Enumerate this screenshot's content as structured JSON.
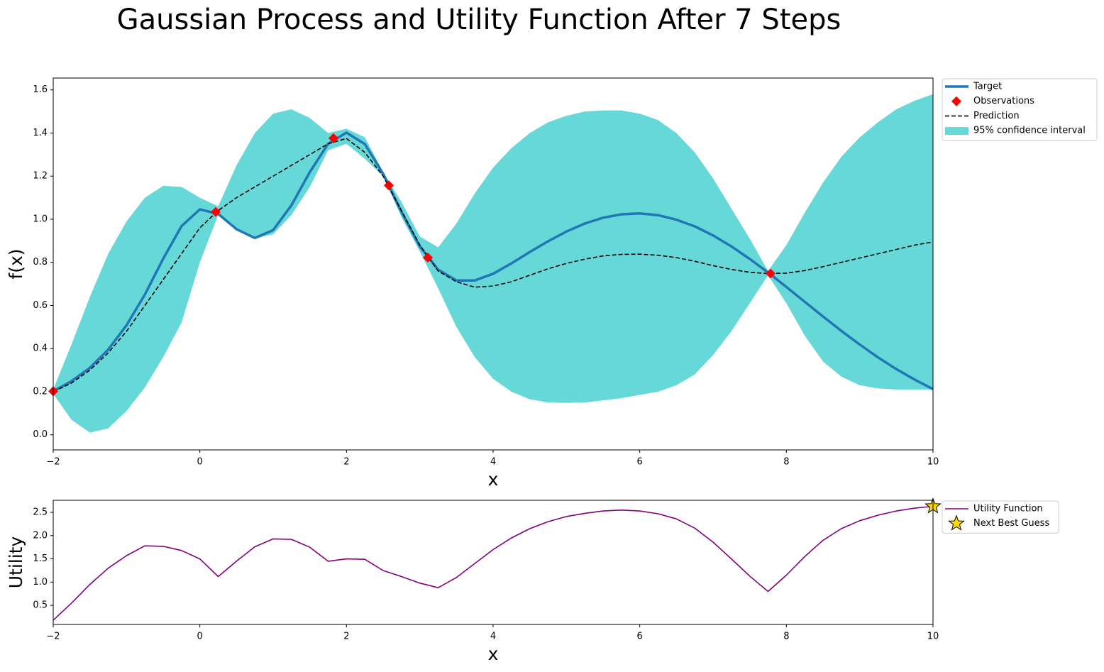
{
  "title": "Gaussian Process and Utility Function After 7 Steps",
  "chart_data": [
    {
      "type": "line",
      "xlabel": "x",
      "ylabel": "f(x)",
      "x": [
        -2,
        -1.75,
        -1.5,
        -1.25,
        -1,
        -0.75,
        -0.5,
        -0.25,
        0,
        0.25,
        0.5,
        0.75,
        1,
        1.25,
        1.5,
        1.75,
        2,
        2.25,
        2.5,
        2.75,
        3,
        3.25,
        3.5,
        3.75,
        4,
        4.25,
        4.5,
        4.75,
        5,
        5.25,
        5.5,
        5.75,
        6,
        6.25,
        6.5,
        6.75,
        7,
        7.25,
        7.5,
        7.75,
        8,
        8.25,
        8.5,
        8.75,
        9,
        9.25,
        9.5,
        9.75,
        10
      ],
      "series": [
        {
          "name": "Target",
          "color": "#1f77b4",
          "width": 3.5,
          "values": [
            0.202,
            0.249,
            0.311,
            0.395,
            0.508,
            0.651,
            0.817,
            0.968,
            1.046,
            1.025,
            0.954,
            0.913,
            0.95,
            1.065,
            1.219,
            1.35,
            1.402,
            1.349,
            1.211,
            1.034,
            0.874,
            0.766,
            0.716,
            0.716,
            0.747,
            0.795,
            0.848,
            0.898,
            0.943,
            0.98,
            1.007,
            1.023,
            1.027,
            1.019,
            0.998,
            0.967,
            0.925,
            0.874,
            0.816,
            0.753,
            0.686,
            0.617,
            0.549,
            0.482,
            0.419,
            0.359,
            0.305,
            0.256,
            0.212
          ]
        },
        {
          "name": "Prediction",
          "color": "#000000",
          "width": 1.6,
          "dash": "dashed",
          "values": [
            0.2,
            0.24,
            0.3,
            0.38,
            0.48,
            0.6,
            0.72,
            0.84,
            0.96,
            1.04,
            1.1,
            1.15,
            1.2,
            1.25,
            1.3,
            1.35,
            1.375,
            1.31,
            1.2,
            1.04,
            0.88,
            0.76,
            0.71,
            0.685,
            0.69,
            0.71,
            0.74,
            0.77,
            0.795,
            0.815,
            0.83,
            0.837,
            0.838,
            0.833,
            0.822,
            0.805,
            0.785,
            0.767,
            0.754,
            0.748,
            0.75,
            0.762,
            0.78,
            0.8,
            0.82,
            0.84,
            0.86,
            0.88,
            0.895
          ]
        }
      ],
      "band": {
        "name": "95% confidence interval",
        "color": "#66d8d8",
        "lower": [
          0.19,
          0.07,
          0.01,
          0.03,
          0.11,
          0.22,
          0.36,
          0.52,
          0.8,
          1.02,
          0.96,
          0.91,
          0.93,
          1.02,
          1.15,
          1.32,
          1.35,
          1.28,
          1.2,
          1.01,
          0.85,
          0.68,
          0.5,
          0.36,
          0.26,
          0.2,
          0.165,
          0.15,
          0.148,
          0.15,
          0.16,
          0.17,
          0.185,
          0.2,
          0.23,
          0.28,
          0.37,
          0.48,
          0.61,
          0.74,
          0.61,
          0.46,
          0.34,
          0.27,
          0.23,
          0.215,
          0.21,
          0.21,
          0.21
        ],
        "upper": [
          0.21,
          0.42,
          0.64,
          0.84,
          0.99,
          1.1,
          1.155,
          1.15,
          1.1,
          1.06,
          1.25,
          1.4,
          1.49,
          1.51,
          1.47,
          1.4,
          1.42,
          1.38,
          1.22,
          1.08,
          0.92,
          0.87,
          0.98,
          1.12,
          1.24,
          1.33,
          1.4,
          1.45,
          1.48,
          1.5,
          1.505,
          1.505,
          1.49,
          1.46,
          1.4,
          1.31,
          1.19,
          1.05,
          0.91,
          0.76,
          0.88,
          1.03,
          1.17,
          1.29,
          1.38,
          1.45,
          1.51,
          1.55,
          1.58
        ]
      },
      "points": {
        "name": "Observations",
        "color": "#ff0000",
        "shape": "diamond",
        "x": [
          -2,
          0.216,
          1.823,
          2.578,
          3.11,
          7.784
        ],
        "values": [
          0.202,
          1.034,
          1.376,
          1.157,
          0.822,
          0.748
        ]
      },
      "xlim": [
        -2,
        10
      ],
      "xticks": [
        {
          "value": -2,
          "label": "−2"
        },
        0,
        2,
        4,
        6,
        8,
        10
      ],
      "ylim": [
        -0.07,
        1.655
      ],
      "yticks": [
        {
          "value": 0,
          "label": "0.0"
        },
        0.2,
        0.4,
        0.6,
        0.8,
        {
          "value": 1,
          "label": "1.0"
        },
        1.2,
        1.4,
        1.6
      ],
      "legend": "outside upper right"
    },
    {
      "type": "line",
      "xlabel": "x",
      "ylabel": "Utility",
      "x": [
        -2,
        -1.75,
        -1.5,
        -1.25,
        -1,
        -0.75,
        -0.5,
        -0.25,
        0,
        0.25,
        0.5,
        0.75,
        1,
        1.25,
        1.5,
        1.75,
        2,
        2.25,
        2.5,
        2.75,
        3,
        3.25,
        3.5,
        3.75,
        4,
        4.25,
        4.5,
        4.75,
        5,
        5.25,
        5.5,
        5.75,
        6,
        6.25,
        6.5,
        6.75,
        7,
        7.25,
        7.5,
        7.75,
        8,
        8.25,
        8.5,
        8.75,
        9,
        9.25,
        9.5,
        9.75,
        10
      ],
      "series": [
        {
          "name": "Utility Function",
          "color": "#800080",
          "width": 1.6,
          "values": [
            0.18,
            0.55,
            0.95,
            1.3,
            1.57,
            1.78,
            1.77,
            1.68,
            1.5,
            1.12,
            1.45,
            1.76,
            1.93,
            1.92,
            1.75,
            1.45,
            1.5,
            1.49,
            1.25,
            1.12,
            0.98,
            0.88,
            1.1,
            1.4,
            1.7,
            1.95,
            2.15,
            2.3,
            2.41,
            2.48,
            2.53,
            2.55,
            2.53,
            2.47,
            2.36,
            2.16,
            1.86,
            1.5,
            1.13,
            0.8,
            1.15,
            1.55,
            1.9,
            2.15,
            2.32,
            2.44,
            2.53,
            2.59,
            2.63
          ]
        }
      ],
      "points": {
        "name": "Next Best Guess",
        "color": "#ffd700",
        "shape": "star",
        "x": [
          10
        ],
        "values": [
          2.63
        ]
      },
      "xlim": [
        -2,
        10
      ],
      "xticks": [
        {
          "value": -2,
          "label": "−2"
        },
        0,
        2,
        4,
        6,
        8,
        10
      ],
      "ylim": [
        0.09,
        2.76
      ],
      "yticks": [
        0.5,
        {
          "value": 1,
          "label": "1.0"
        },
        1.5,
        {
          "value": 2,
          "label": "2.0"
        },
        2.5
      ],
      "legend": "outside upper right"
    }
  ]
}
